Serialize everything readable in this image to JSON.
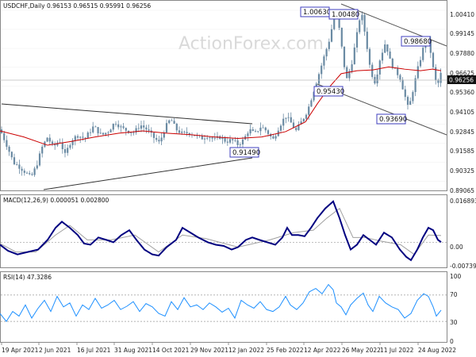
{
  "chart_data": [
    {
      "type": "candlestick",
      "title": "USDCHF,Daily",
      "ohlc_header": "0.96153 0.96515 0.95991 0.96256",
      "watermark": "ActionForex.com",
      "last_price": "0.96256",
      "y_ticks": [
        "1.00410",
        "0.99145",
        "0.97880",
        "0.96625",
        "0.95360",
        "0.94105",
        "0.92845",
        "0.91585",
        "0.90325",
        "0.89065"
      ],
      "x_ticks": [
        "19 Apr 2021",
        "2 Jun 2021",
        "16 Jul 2021",
        "31 Aug 2021",
        "14 Oct 2021",
        "29 Nov 2021",
        "12 Jan 2022",
        "25 Feb 2022",
        "12 Apr 2022",
        "26 May 2022",
        "11 Jul 2022",
        "24 Aug 2022"
      ],
      "ylim": [
        0.8866,
        1.0083
      ],
      "annotations": [
        "1.00630",
        "1.00480",
        "0.98680",
        "0.95430",
        "0.93690",
        "0.91490"
      ],
      "colors": {
        "candle": "#6a8aa3",
        "moving_average": "#cc0000",
        "trendline": "#333333",
        "label_border": "#3f3fbf"
      },
      "close_path": [
        [
          0,
          0.925
        ],
        [
          9,
          0.914
        ],
        [
          17,
          0.903
        ],
        [
          25,
          0.9
        ],
        [
          33,
          0.896
        ],
        [
          39,
          0.893
        ],
        [
          46,
          0.901
        ],
        [
          53,
          0.913
        ],
        [
          60,
          0.92
        ],
        [
          67,
          0.913
        ],
        [
          75,
          0.918
        ],
        [
          82,
          0.908
        ],
        [
          90,
          0.918
        ],
        [
          98,
          0.921
        ],
        [
          107,
          0.919
        ],
        [
          118,
          0.927
        ],
        [
          128,
          0.921
        ],
        [
          137,
          0.924
        ],
        [
          145,
          0.93
        ],
        [
          153,
          0.926
        ],
        [
          161,
          0.924
        ],
        [
          169,
          0.923
        ],
        [
          177,
          0.928
        ],
        [
          185,
          0.925
        ],
        [
          193,
          0.92
        ],
        [
          201,
          0.916
        ],
        [
          208,
          0.926
        ],
        [
          215,
          0.932
        ],
        [
          222,
          0.925
        ],
        [
          230,
          0.922
        ],
        [
          238,
          0.923
        ],
        [
          246,
          0.921
        ],
        [
          254,
          0.919
        ],
        [
          262,
          0.921
        ],
        [
          270,
          0.918
        ],
        [
          277,
          0.92
        ],
        [
          285,
          0.917
        ],
        [
          292,
          0.918
        ],
        [
          300,
          0.9149
        ],
        [
          307,
          0.918
        ],
        [
          314,
          0.925
        ],
        [
          321,
          0.922
        ],
        [
          329,
          0.927
        ],
        [
          336,
          0.924
        ],
        [
          344,
          0.918
        ],
        [
          352,
          0.927
        ],
        [
          360,
          0.934
        ],
        [
          366,
          0.93
        ],
        [
          373,
          0.924
        ],
        [
          381,
          0.931
        ],
        [
          388,
          0.938
        ],
        [
          395,
          0.95
        ],
        [
          402,
          0.962
        ],
        [
          409,
          0.974
        ],
        [
          416,
          0.986
        ],
        [
          422,
          1.003
        ],
        [
          428,
          0.991
        ],
        [
          433,
          0.97
        ],
        [
          437,
          0.958
        ],
        [
          443,
          0.968
        ],
        [
          449,
          0.985
        ],
        [
          455,
          1.004
        ],
        [
          461,
          0.986
        ],
        [
          467,
          0.964
        ],
        [
          473,
          0.956
        ],
        [
          479,
          0.972
        ],
        [
          486,
          0.983
        ],
        [
          492,
          0.97
        ],
        [
          498,
          0.964
        ],
        [
          504,
          0.96
        ],
        [
          510,
          0.948
        ],
        [
          515,
          0.938
        ],
        [
          520,
          0.95
        ],
        [
          527,
          0.966
        ],
        [
          533,
          0.978
        ],
        [
          538,
          0.986
        ],
        [
          543,
          0.976
        ],
        [
          547,
          0.962
        ],
        [
          551,
          0.953
        ],
        [
          556,
          0.9626
        ]
      ],
      "moving_average_path": [
        [
          0,
          0.924
        ],
        [
          30,
          0.92
        ],
        [
          60,
          0.9145
        ],
        [
          90,
          0.917
        ],
        [
          120,
          0.92
        ],
        [
          150,
          0.9225
        ],
        [
          180,
          0.924
        ],
        [
          210,
          0.9225
        ],
        [
          240,
          0.9215
        ],
        [
          270,
          0.92
        ],
        [
          300,
          0.919
        ],
        [
          330,
          0.92
        ],
        [
          360,
          0.9235
        ],
        [
          385,
          0.93
        ],
        [
          400,
          0.942
        ],
        [
          415,
          0.953
        ],
        [
          430,
          0.962
        ],
        [
          450,
          0.964
        ],
        [
          470,
          0.9645
        ],
        [
          490,
          0.9665
        ],
        [
          510,
          0.965
        ],
        [
          530,
          0.964
        ],
        [
          545,
          0.965
        ],
        [
          556,
          0.964
        ]
      ]
    },
    {
      "type": "line",
      "title": "MACD(12,26,9) 0.000051 0.002800",
      "y_ticks": [
        "0.016893",
        "0.00",
        "-0.007393"
      ],
      "ylim": [
        -0.0097,
        0.0185
      ],
      "colors": {
        "macd": "#000080",
        "signal": "#a0a0a0"
      },
      "macd_path": [
        [
          0,
          -0.001
        ],
        [
          10,
          -0.0035
        ],
        [
          22,
          -0.005
        ],
        [
          35,
          -0.004
        ],
        [
          48,
          -0.003
        ],
        [
          60,
          0.001
        ],
        [
          70,
          0.006
        ],
        [
          78,
          0.0085
        ],
        [
          88,
          0.006
        ],
        [
          98,
          0.003
        ],
        [
          106,
          -0.0005
        ],
        [
          114,
          -0.001
        ],
        [
          124,
          0.002
        ],
        [
          134,
          0.001
        ],
        [
          143,
          0.0
        ],
        [
          153,
          0.003
        ],
        [
          163,
          0.005
        ],
        [
          172,
          0.001
        ],
        [
          182,
          -0.003
        ],
        [
          192,
          -0.005
        ],
        [
          200,
          -0.0055
        ],
        [
          210,
          -0.002
        ],
        [
          222,
          0.001
        ],
        [
          230,
          0.006
        ],
        [
          240,
          0.004
        ],
        [
          250,
          0.002
        ],
        [
          262,
          0.0
        ],
        [
          272,
          -0.001
        ],
        [
          282,
          -0.0015
        ],
        [
          292,
          -0.003
        ],
        [
          300,
          -0.002
        ],
        [
          310,
          0.001
        ],
        [
          318,
          0.002
        ],
        [
          327,
          0.001
        ],
        [
          337,
          0.0
        ],
        [
          347,
          -0.001
        ],
        [
          356,
          0.002
        ],
        [
          362,
          0.006
        ],
        [
          368,
          0.003
        ],
        [
          376,
          0.003
        ],
        [
          384,
          0.0025
        ],
        [
          392,
          0.006
        ],
        [
          400,
          0.01
        ],
        [
          410,
          0.014
        ],
        [
          420,
          0.0169
        ],
        [
          428,
          0.01
        ],
        [
          435,
          0.003
        ],
        [
          442,
          -0.003
        ],
        [
          450,
          -0.001
        ],
        [
          458,
          0.003
        ],
        [
          466,
          0.001
        ],
        [
          474,
          -0.001
        ],
        [
          484,
          0.004
        ],
        [
          494,
          0.002
        ],
        [
          504,
          -0.003
        ],
        [
          512,
          -0.006
        ],
        [
          518,
          -0.0074
        ],
        [
          526,
          -0.003
        ],
        [
          533,
          0.002
        ],
        [
          540,
          0.006
        ],
        [
          546,
          0.005
        ],
        [
          552,
          0.001
        ],
        [
          556,
          0.0001
        ]
      ],
      "signal_path": [
        [
          0,
          -0.0005
        ],
        [
          20,
          -0.004
        ],
        [
          45,
          -0.004
        ],
        [
          70,
          0.003
        ],
        [
          88,
          0.007
        ],
        [
          110,
          0.001
        ],
        [
          140,
          0.001
        ],
        [
          170,
          0.003
        ],
        [
          200,
          -0.004
        ],
        [
          230,
          0.003
        ],
        [
          260,
          0.0015
        ],
        [
          300,
          -0.002
        ],
        [
          340,
          0.001
        ],
        [
          370,
          0.004
        ],
        [
          395,
          0.005
        ],
        [
          412,
          0.01
        ],
        [
          428,
          0.014
        ],
        [
          445,
          0.002
        ],
        [
          460,
          0.002
        ],
        [
          480,
          0.0005
        ],
        [
          505,
          -0.001
        ],
        [
          522,
          -0.005
        ],
        [
          540,
          0.003
        ],
        [
          556,
          0.0028
        ]
      ]
    },
    {
      "type": "line",
      "title": "RSI(14) 47.3286",
      "y_ticks": [
        "100",
        "70",
        "30",
        "0"
      ],
      "ylim": [
        0,
        100
      ],
      "levels": [
        70,
        30
      ],
      "colors": {
        "rsi": "#1e90ff",
        "level": "#999999"
      },
      "rsi_path": [
        [
          0,
          42
        ],
        [
          8,
          30
        ],
        [
          16,
          45
        ],
        [
          24,
          38
        ],
        [
          32,
          55
        ],
        [
          40,
          35
        ],
        [
          48,
          50
        ],
        [
          56,
          62
        ],
        [
          64,
          45
        ],
        [
          72,
          68
        ],
        [
          80,
          52
        ],
        [
          88,
          58
        ],
        [
          96,
          38
        ],
        [
          104,
          55
        ],
        [
          112,
          48
        ],
        [
          120,
          65
        ],
        [
          128,
          50
        ],
        [
          136,
          55
        ],
        [
          144,
          62
        ],
        [
          152,
          48
        ],
        [
          160,
          53
        ],
        [
          168,
          60
        ],
        [
          176,
          45
        ],
        [
          184,
          57
        ],
        [
          192,
          52
        ],
        [
          200,
          42
        ],
        [
          208,
          38
        ],
        [
          216,
          60
        ],
        [
          224,
          48
        ],
        [
          232,
          66
        ],
        [
          240,
          52
        ],
        [
          248,
          55
        ],
        [
          256,
          48
        ],
        [
          264,
          58
        ],
        [
          272,
          52
        ],
        [
          280,
          44
        ],
        [
          288,
          50
        ],
        [
          296,
          35
        ],
        [
          304,
          62
        ],
        [
          312,
          55
        ],
        [
          320,
          50
        ],
        [
          328,
          60
        ],
        [
          336,
          48
        ],
        [
          344,
          45
        ],
        [
          352,
          52
        ],
        [
          360,
          68
        ],
        [
          366,
          55
        ],
        [
          374,
          48
        ],
        [
          382,
          58
        ],
        [
          390,
          75
        ],
        [
          398,
          80
        ],
        [
          406,
          72
        ],
        [
          414,
          86
        ],
        [
          420,
          78
        ],
        [
          424,
          58
        ],
        [
          430,
          52
        ],
        [
          436,
          40
        ],
        [
          442,
          55
        ],
        [
          450,
          65
        ],
        [
          458,
          73
        ],
        [
          464,
          55
        ],
        [
          470,
          45
        ],
        [
          478,
          68
        ],
        [
          486,
          58
        ],
        [
          494,
          52
        ],
        [
          502,
          48
        ],
        [
          510,
          35
        ],
        [
          518,
          42
        ],
        [
          526,
          62
        ],
        [
          534,
          72
        ],
        [
          540,
          68
        ],
        [
          546,
          52
        ],
        [
          550,
          38
        ],
        [
          556,
          47
        ]
      ]
    }
  ]
}
